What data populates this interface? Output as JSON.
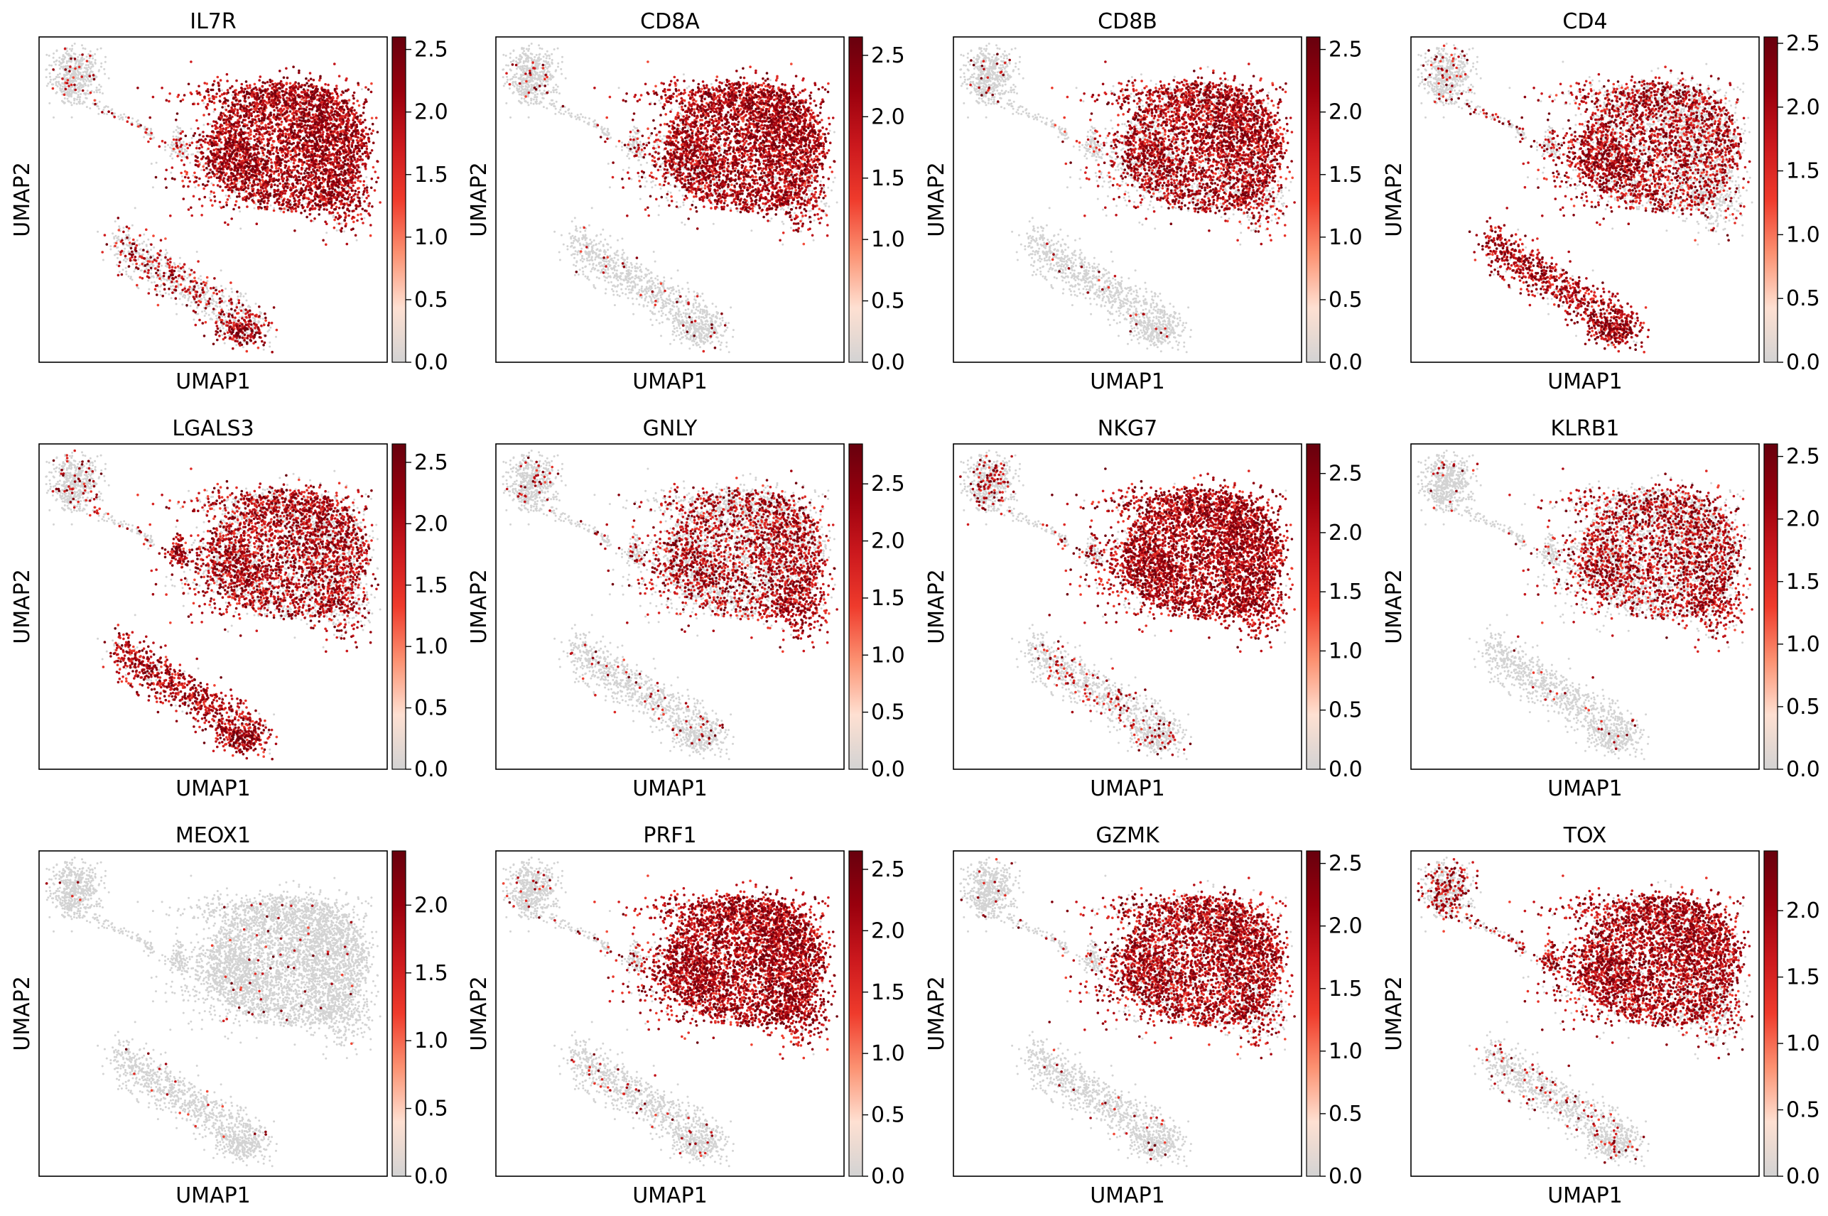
{
  "chart_data": {
    "type": "scatter",
    "embedding": "UMAP",
    "colormap": [
      "#d3d3d3",
      "#fee0d2",
      "#fc9272",
      "#ef3b2c",
      "#cb181d",
      "#99000d",
      "#67000d"
    ],
    "background_color": "#d3d3d3",
    "panels": [
      {
        "title": "IL7R",
        "xlabel": "UMAP1",
        "ylabel": "UMAP2",
        "vmax": 2.6,
        "ticks": [
          "0.0",
          "0.5",
          "1.0",
          "1.5",
          "2.0",
          "2.5"
        ],
        "tick_values": [
          0,
          0.5,
          1,
          1.5,
          2,
          2.5
        ],
        "clusters": {
          "top_left": 0.05,
          "bridge": 0.25,
          "small_blob": 0.1,
          "main": 0.9,
          "main_left": 0.8,
          "main_right": 0.95,
          "main_bottom_right": 0.8,
          "bottom": 0.35,
          "bottom_tip": 0.85
        }
      },
      {
        "title": "CD8A",
        "xlabel": "UMAP1",
        "ylabel": "UMAP2",
        "vmax": 2.65,
        "ticks": [
          "0.0",
          "0.5",
          "1.0",
          "1.5",
          "2.0",
          "2.5"
        ],
        "tick_values": [
          0,
          0.5,
          1,
          1.5,
          2,
          2.5
        ],
        "clusters": {
          "top_left": 0.05,
          "bridge": 0.05,
          "small_blob": 0.15,
          "main": 0.9,
          "main_left": 0.55,
          "main_right": 0.95,
          "main_bottom_right": 0.7,
          "bottom": 0.03,
          "bottom_tip": 0.03
        }
      },
      {
        "title": "CD8B",
        "xlabel": "UMAP1",
        "ylabel": "UMAP2",
        "vmax": 2.6,
        "ticks": [
          "0.0",
          "0.5",
          "1.0",
          "1.5",
          "2.0",
          "2.5"
        ],
        "tick_values": [
          0,
          0.5,
          1,
          1.5,
          2,
          2.5
        ],
        "clusters": {
          "top_left": 0.05,
          "bridge": 0.05,
          "small_blob": 0.05,
          "main": 0.75,
          "main_left": 0.4,
          "main_right": 0.85,
          "main_bottom_right": 0.5,
          "bottom": 0.02,
          "bottom_tip": 0.02
        }
      },
      {
        "title": "CD4",
        "xlabel": "UMAP1",
        "ylabel": "UMAP2",
        "vmax": 2.55,
        "ticks": [
          "0.0",
          "0.5",
          "1.0",
          "1.5",
          "2.0",
          "2.5"
        ],
        "tick_values": [
          0,
          0.5,
          1,
          1.5,
          2,
          2.5
        ],
        "clusters": {
          "top_left": 0.1,
          "bridge": 0.3,
          "small_blob": 0.25,
          "main": 0.55,
          "main_left": 0.8,
          "main_right": 0.3,
          "main_bottom_right": 0.2,
          "bottom": 0.85,
          "bottom_tip": 0.9
        }
      },
      {
        "title": "LGALS3",
        "xlabel": "UMAP1",
        "ylabel": "UMAP2",
        "vmax": 2.65,
        "ticks": [
          "0.0",
          "0.5",
          "1.0",
          "1.5",
          "2.0",
          "2.5"
        ],
        "tick_values": [
          0,
          0.5,
          1,
          1.5,
          2,
          2.5
        ],
        "clusters": {
          "top_left": 0.1,
          "bridge": 0.2,
          "small_blob": 0.9,
          "main": 0.6,
          "main_left": 0.65,
          "main_right": 0.55,
          "main_bottom_right": 0.5,
          "bottom": 0.85,
          "bottom_tip": 0.9
        }
      },
      {
        "title": "GNLY",
        "xlabel": "UMAP1",
        "ylabel": "UMAP2",
        "vmax": 2.85,
        "ticks": [
          "0.0",
          "0.5",
          "1.0",
          "1.5",
          "2.0",
          "2.5"
        ],
        "tick_values": [
          0,
          0.5,
          1,
          1.5,
          2,
          2.5
        ],
        "clusters": {
          "top_left": 0.05,
          "bridge": 0.05,
          "small_blob": 0.1,
          "main": 0.4,
          "main_left": 0.45,
          "main_right": 0.65,
          "main_bottom_right": 0.9,
          "bottom": 0.05,
          "bottom_tip": 0.05
        }
      },
      {
        "title": "NKG7",
        "xlabel": "UMAP1",
        "ylabel": "UMAP2",
        "vmax": 2.75,
        "ticks": [
          "0.0",
          "0.5",
          "1.0",
          "1.5",
          "2.0",
          "2.5"
        ],
        "tick_values": [
          0,
          0.5,
          1,
          1.5,
          2,
          2.5
        ],
        "clusters": {
          "top_left": 0.15,
          "bridge": 0.1,
          "small_blob": 0.2,
          "main": 0.9,
          "main_left": 0.8,
          "main_right": 0.95,
          "main_bottom_right": 0.9,
          "bottom": 0.15,
          "bottom_tip": 0.1
        }
      },
      {
        "title": "KLRB1",
        "xlabel": "UMAP1",
        "ylabel": "UMAP2",
        "vmax": 2.6,
        "ticks": [
          "0.0",
          "0.5",
          "1.0",
          "1.5",
          "2.0",
          "2.5"
        ],
        "tick_values": [
          0,
          0.5,
          1,
          1.5,
          2,
          2.5
        ],
        "clusters": {
          "top_left": 0.03,
          "bridge": 0.03,
          "small_blob": 0.05,
          "main": 0.45,
          "main_left": 0.4,
          "main_right": 0.45,
          "main_bottom_right": 0.65,
          "bottom": 0.03,
          "bottom_tip": 0.05
        }
      },
      {
        "title": "MEOX1",
        "xlabel": "UMAP1",
        "ylabel": "UMAP2",
        "vmax": 2.4,
        "ticks": [
          "0.0",
          "0.5",
          "1.0",
          "1.5",
          "2.0"
        ],
        "tick_values": [
          0,
          0.5,
          1,
          1.5,
          2
        ],
        "clusters": {
          "top_left": 0.01,
          "bridge": 0.0,
          "small_blob": 0.0,
          "main": 0.015,
          "main_left": 0.015,
          "main_right": 0.015,
          "main_bottom_right": 0.01,
          "bottom": 0.01,
          "bottom_tip": 0.0
        }
      },
      {
        "title": "PRF1",
        "xlabel": "UMAP1",
        "ylabel": "UMAP2",
        "vmax": 2.65,
        "ticks": [
          "0.0",
          "0.5",
          "1.0",
          "1.5",
          "2.0",
          "2.5"
        ],
        "tick_values": [
          0,
          0.5,
          1,
          1.5,
          2,
          2.5
        ],
        "clusters": {
          "top_left": 0.05,
          "bridge": 0.05,
          "small_blob": 0.15,
          "main": 0.9,
          "main_left": 0.85,
          "main_right": 0.95,
          "main_bottom_right": 0.95,
          "bottom": 0.04,
          "bottom_tip": 0.03
        }
      },
      {
        "title": "GZMK",
        "xlabel": "UMAP1",
        "ylabel": "UMAP2",
        "vmax": 2.6,
        "ticks": [
          "0.0",
          "0.5",
          "1.0",
          "1.5",
          "2.0",
          "2.5"
        ],
        "tick_values": [
          0,
          0.5,
          1,
          1.5,
          2,
          2.5
        ],
        "clusters": {
          "top_left": 0.03,
          "bridge": 0.03,
          "small_blob": 0.05,
          "main": 0.75,
          "main_left": 0.7,
          "main_right": 0.8,
          "main_bottom_right": 0.55,
          "bottom": 0.03,
          "bottom_tip": 0.03
        }
      },
      {
        "title": "TOX",
        "xlabel": "UMAP1",
        "ylabel": "UMAP2",
        "vmax": 2.45,
        "ticks": [
          "0.0",
          "0.5",
          "1.0",
          "1.5",
          "2.0"
        ],
        "tick_values": [
          0,
          0.5,
          1,
          1.5,
          2
        ],
        "clusters": {
          "top_left": 0.3,
          "bridge": 0.45,
          "small_blob": 0.7,
          "main": 0.8,
          "main_left": 0.7,
          "main_right": 0.75,
          "main_bottom_right": 0.5,
          "bottom": 0.1,
          "bottom_tip": 0.1
        }
      }
    ]
  }
}
